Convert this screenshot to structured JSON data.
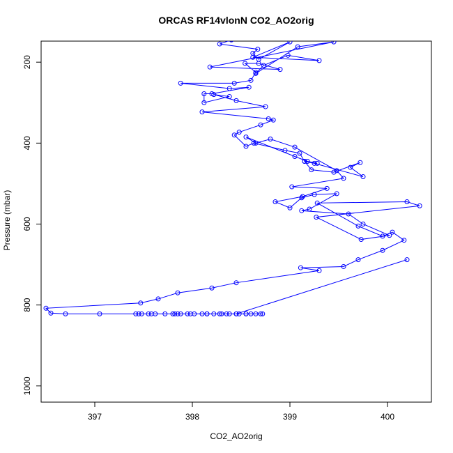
{
  "chart_data": {
    "type": "line",
    "title": "ORCAS RF14vlonN CO2_AO2orig",
    "xlabel": "CO2_AO2orig",
    "ylabel": "Pressure (mbar)",
    "xlim": [
      396.45,
      400.45
    ],
    "ylim": [
      1040,
      148
    ],
    "y_reversed": true,
    "xticks": [
      397,
      398,
      399,
      400
    ],
    "yticks": [
      200,
      400,
      600,
      800,
      1000
    ],
    "series": [
      {
        "color": "#0000ff",
        "x": [
          398.4,
          398.28,
          398.67,
          398.62,
          398.68,
          399.0,
          398.62,
          399.3,
          398.98,
          398.73,
          398.65,
          399.08,
          399.45,
          398.18,
          398.9,
          398.68,
          398.54,
          398.65,
          398.6,
          398.43,
          397.88,
          398.38,
          398.58,
          398.2,
          398.12,
          398.12,
          398.38,
          398.22,
          398.45,
          398.75,
          398.1,
          398.78,
          398.83,
          398.7,
          398.48,
          398.43,
          398.55,
          398.63,
          398.95,
          399.1,
          399.15,
          399.25,
          399.75,
          399.62,
          399.72,
          399.45,
          399.22,
          399.15,
          399.28,
          399.18,
          399.05,
          398.55,
          398.65,
          398.8,
          399.05,
          399.48,
          399.55,
          399.02,
          399.38,
          399.13,
          398.85,
          399.0,
          399.12,
          399.25,
          399.48,
          399.2,
          399.12,
          399.6,
          399.75,
          400.02,
          399.73,
          399.27,
          400.33,
          400.2,
          399.28,
          399.7,
          399.95,
          400.05,
          400.17,
          399.95,
          399.7,
          399.55,
          399.11,
          399.3,
          398.45,
          398.2,
          397.85,
          397.65,
          397.47,
          396.5,
          396.55,
          396.7,
          397.05,
          397.45,
          397.55,
          397.8,
          398.15,
          398.35,
          398.55,
          398.65,
          398.72,
          398.55,
          398.38,
          398.22,
          398.1,
          397.98,
          397.88,
          397.72,
          397.58,
          397.48,
          397.42,
          397.62,
          397.82,
          397.95,
          398.15,
          398.3,
          398.45,
          398.6,
          398.7,
          398.48,
          398.28,
          398.02,
          397.85,
          398.45,
          400.2
        ],
        "y": [
          145,
          155,
          168,
          178,
          193,
          150,
          188,
          196,
          183,
          208,
          228,
          162,
          150,
          212,
          218,
          203,
          203,
          225,
          245,
          252,
          252,
          265,
          262,
          278,
          278,
          300,
          285,
          280,
          295,
          310,
          323,
          340,
          343,
          355,
          373,
          380,
          408,
          400,
          418,
          425,
          445,
          450,
          483,
          460,
          448,
          472,
          466,
          445,
          450,
          445,
          433,
          385,
          400,
          390,
          410,
          468,
          487,
          508,
          512,
          532,
          545,
          560,
          535,
          527,
          525,
          563,
          567,
          575,
          600,
          628,
          638,
          583,
          555,
          545,
          548,
          605,
          630,
          620,
          640,
          665,
          688,
          705,
          708,
          715,
          745,
          758,
          770,
          785,
          795,
          808,
          820,
          822,
          822,
          822,
          822,
          822,
          822,
          822,
          822,
          822,
          822,
          822,
          822,
          822,
          822,
          822,
          822,
          822,
          822,
          822,
          822,
          822,
          822,
          822,
          822,
          822,
          822,
          822,
          822,
          822,
          822,
          822,
          822,
          822,
          688
        ]
      }
    ]
  }
}
